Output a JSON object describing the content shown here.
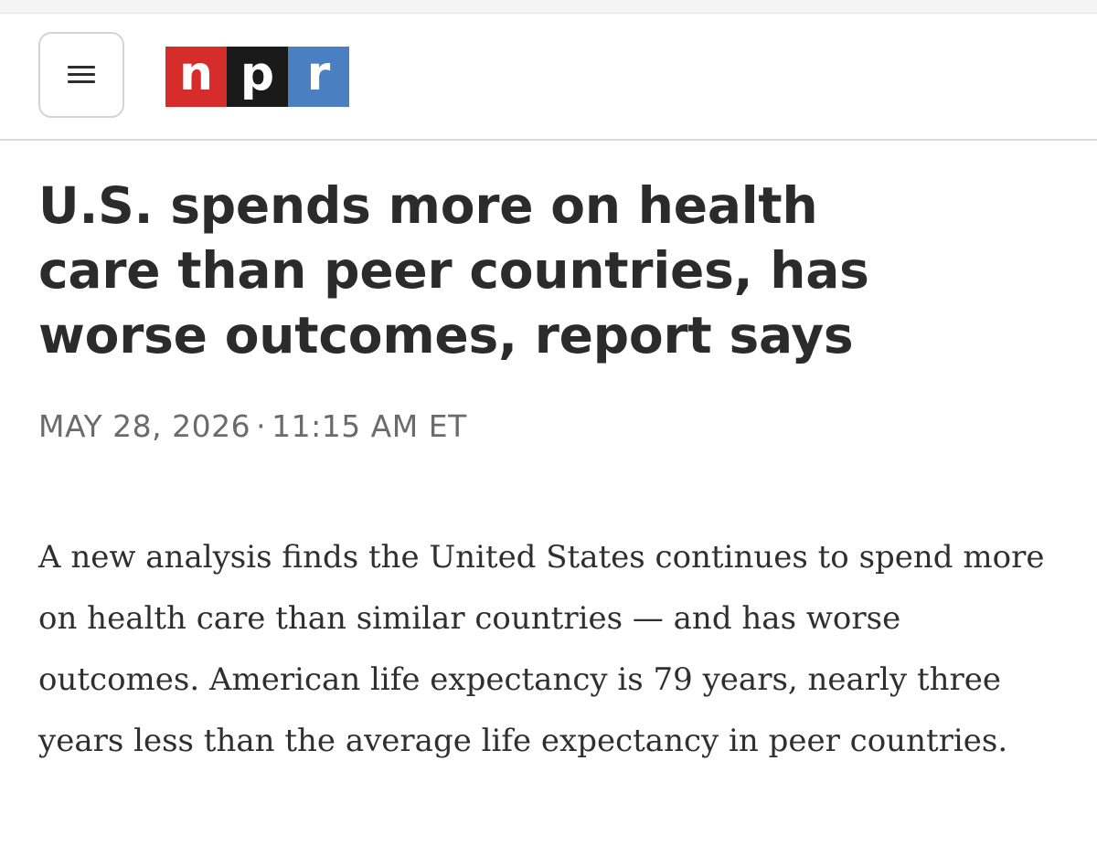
{
  "header": {
    "menu_icon": "hamburger-menu-icon",
    "logo": {
      "letters": [
        "n",
        "p",
        "r"
      ],
      "colors": [
        "#d62d2a",
        "#1a1a1a",
        "#4a7fc1"
      ]
    }
  },
  "article": {
    "headline": "U.S. spends more on health care than peer countries, has worse outcomes, report says",
    "date": "MAY 28, 2026",
    "separator": "·",
    "time": "11:15 AM ET",
    "body": "A new analysis finds the United States continues to spend more on health care than similar countries — and has worse outcomes. American life expectancy is 79 years, nearly three years less than the average life expectancy in peer countries."
  }
}
